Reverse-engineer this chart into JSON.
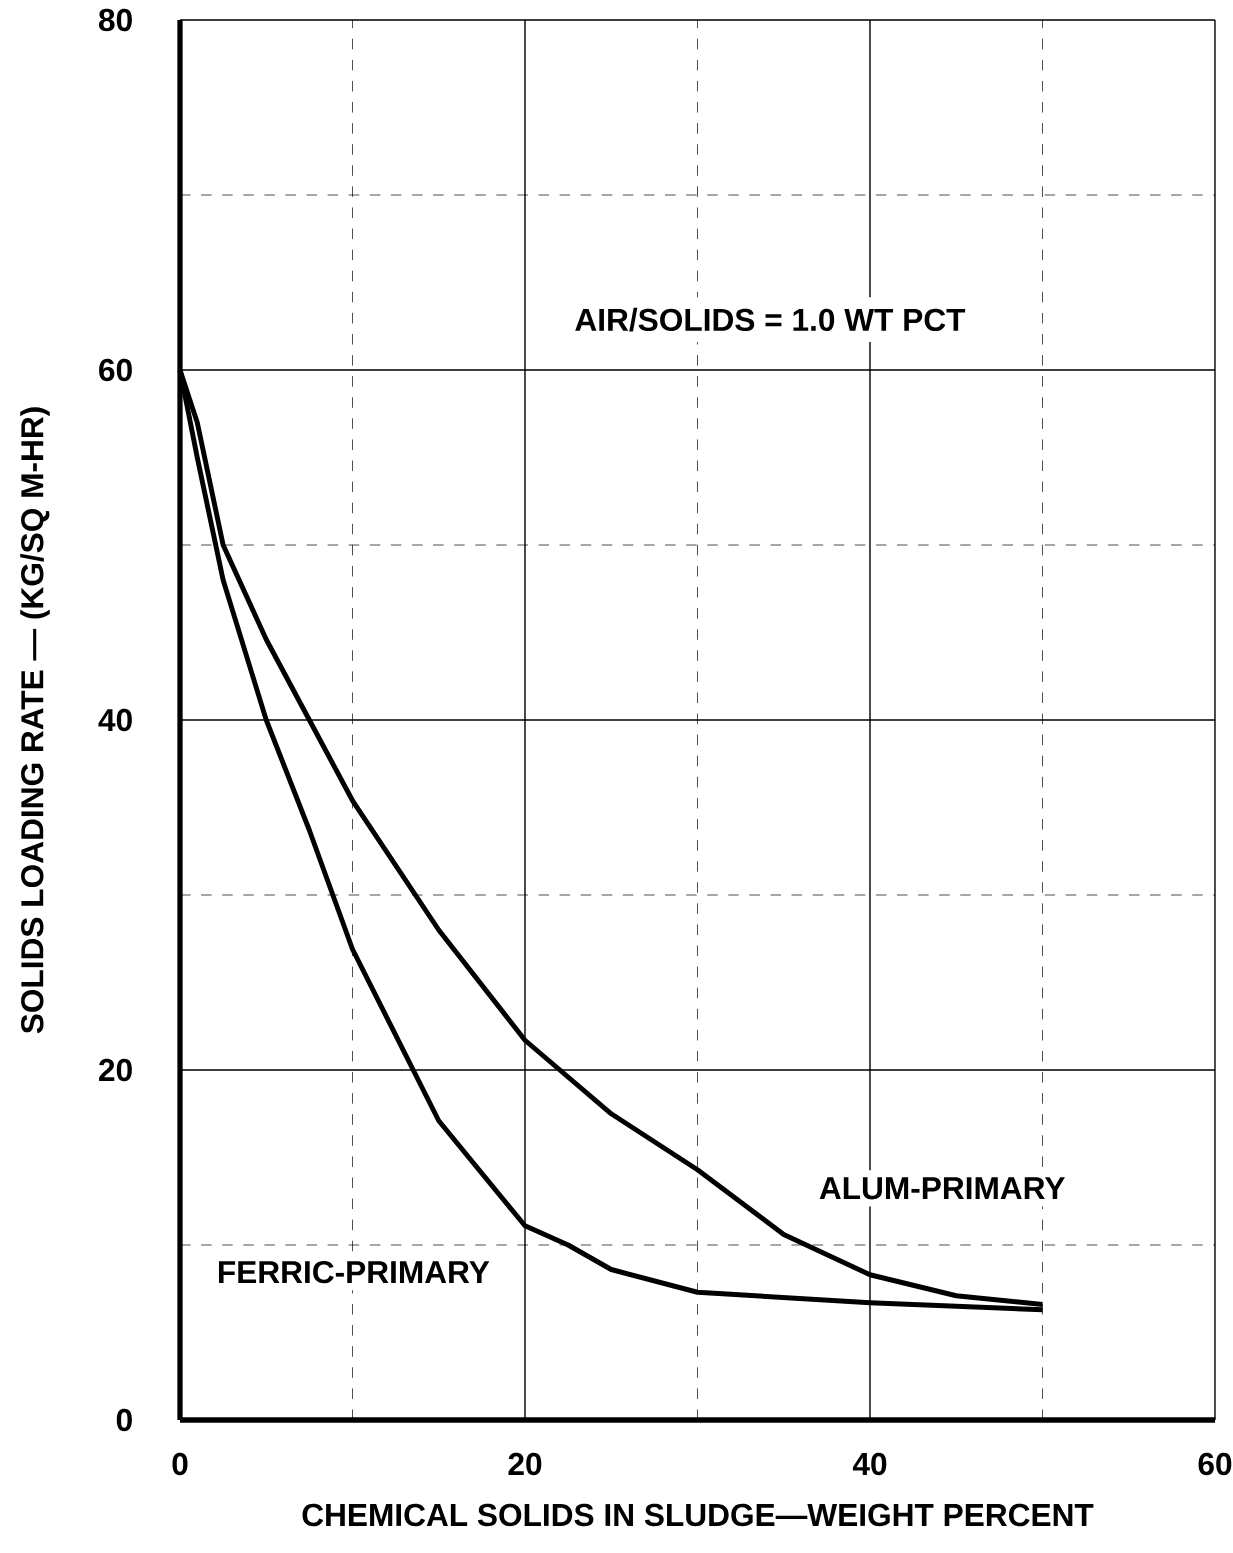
{
  "chart_data": {
    "type": "line",
    "xlabel": "CHEMICAL SOLIDS IN SLUDGE—WEIGHT PERCENT",
    "ylabel": "SOLIDS LOADING RATE — (KG/SQ M-HR)",
    "xlim": [
      0,
      60
    ],
    "ylim": [
      0,
      80
    ],
    "xticks": [
      0,
      20,
      40,
      60
    ],
    "yticks": [
      0,
      20,
      40,
      60,
      80
    ],
    "grid": true,
    "marker": "none",
    "line_style": "solid",
    "annotations": [
      "AIR/SOLIDS = 1.0 WT PCT"
    ],
    "series": [
      {
        "name": "ALUM-PRIMARY",
        "color": "#000000",
        "x": [
          0,
          1,
          2.5,
          5,
          7.5,
          10,
          15,
          20,
          25,
          30,
          35,
          40,
          45,
          50
        ],
        "values": [
          60,
          57,
          50,
          44.6,
          40,
          35.4,
          28,
          21.7,
          17.5,
          14.3,
          10.6,
          8.3,
          7.1,
          6.6
        ]
      },
      {
        "name": "FERRIC-PRIMARY",
        "color": "#000000",
        "x": [
          0,
          1,
          2.5,
          5,
          7.5,
          10,
          15,
          20,
          22.5,
          25,
          30,
          40,
          50
        ],
        "values": [
          60,
          55,
          48,
          40,
          33.7,
          26.9,
          17.1,
          11.1,
          10,
          8.6,
          7.3,
          6.7,
          6.3
        ]
      }
    ]
  }
}
